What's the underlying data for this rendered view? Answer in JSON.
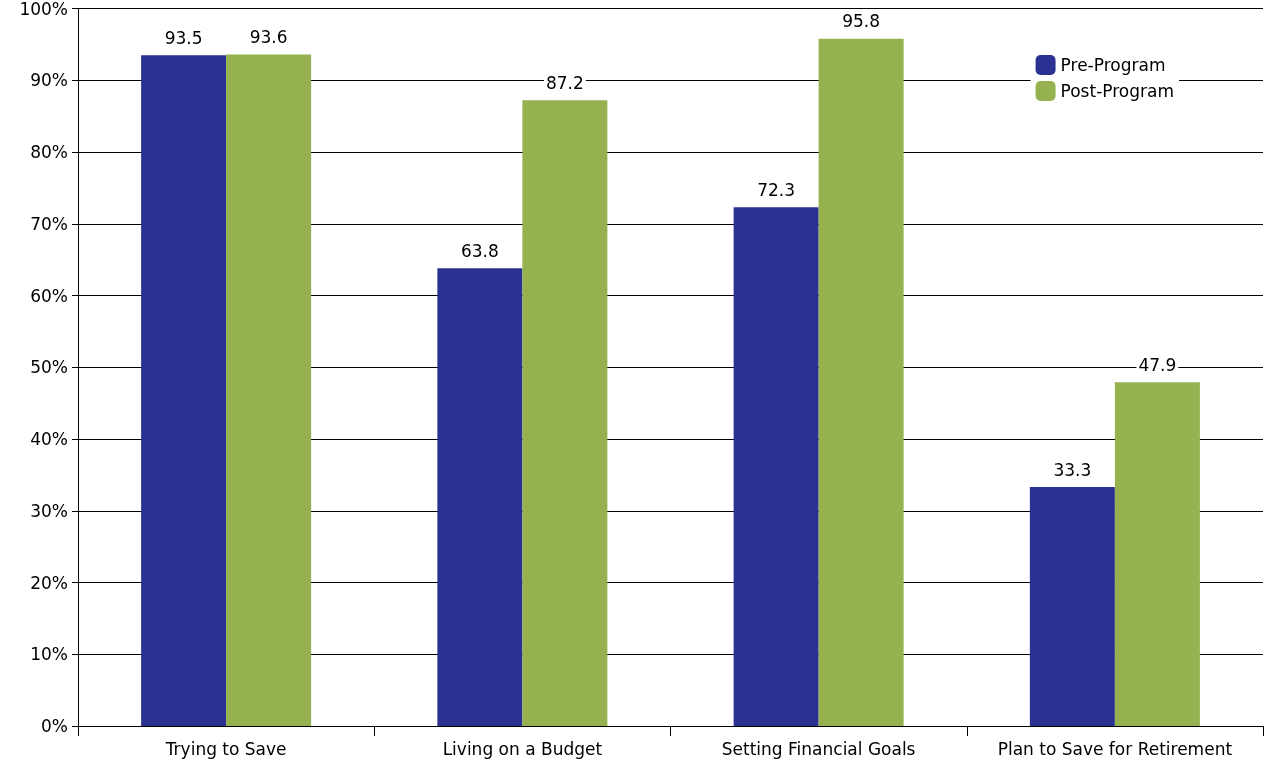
{
  "chart_data": {
    "type": "bar",
    "categories": [
      "Trying to Save",
      "Living on a Budget",
      "Setting Financial Goals",
      "Plan to Save for Retirement"
    ],
    "series": [
      {
        "name": "Pre-Program",
        "color": "#2a3190",
        "values": [
          93.5,
          63.8,
          72.3,
          33.3
        ]
      },
      {
        "name": "Post-Program",
        "color": "#95b150",
        "values": [
          93.6,
          87.2,
          95.8,
          47.9
        ]
      }
    ],
    "ylim": [
      0,
      100
    ],
    "yticks": [
      {
        "value": 0,
        "label": "0%"
      },
      {
        "value": 10,
        "label": "10%"
      },
      {
        "value": 20,
        "label": "20%"
      },
      {
        "value": 30,
        "label": "30%"
      },
      {
        "value": 40,
        "label": "40%"
      },
      {
        "value": 50,
        "label": "50%"
      },
      {
        "value": 60,
        "label": "60%"
      },
      {
        "value": 70,
        "label": "70%"
      },
      {
        "value": 80,
        "label": "80%"
      },
      {
        "value": 90,
        "label": "90%"
      },
      {
        "value": 100,
        "label": "100%"
      }
    ],
    "grid": "y",
    "legend": "top right",
    "data_labels": true
  }
}
